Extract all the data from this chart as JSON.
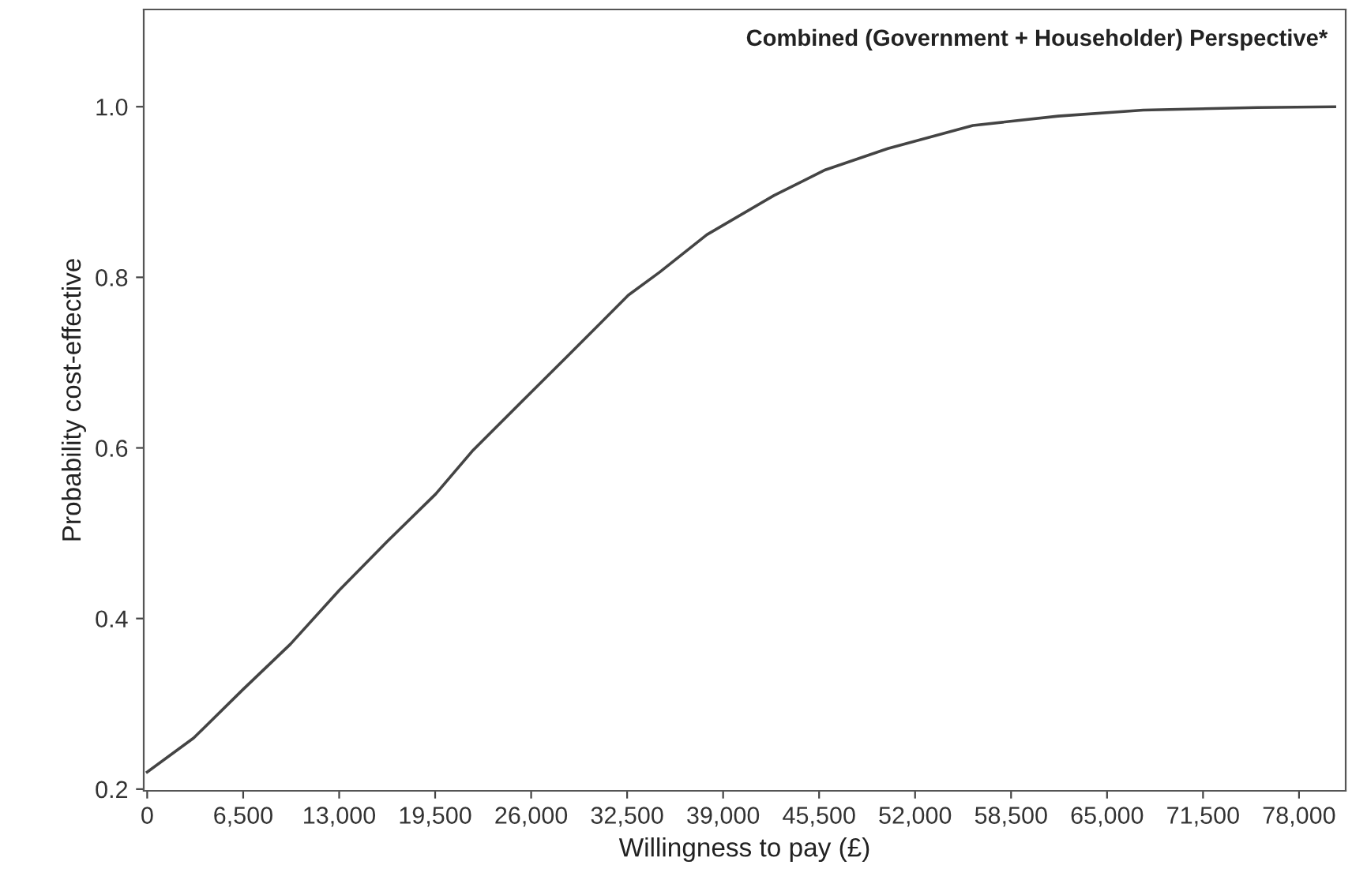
{
  "chart_data": {
    "type": "line",
    "title": "Combined (Government + Householder) Perspective*",
    "xlabel": "Willingness to pay (£)",
    "ylabel": "Probability cost-effective",
    "x": [
      0,
      3150,
      6500,
      9700,
      13000,
      16230,
      19540,
      22000,
      26040,
      28540,
      32580,
      34700,
      37900,
      42450,
      45920,
      50150,
      55910,
      61690,
      67450,
      75150,
      80420
    ],
    "series": [
      {
        "color": "#444444",
        "values": [
          0.22,
          0.26,
          0.317,
          0.37,
          0.433,
          0.49,
          0.546,
          0.596,
          0.666,
          0.709,
          0.779,
          0.806,
          0.85,
          0.896,
          0.926,
          0.951,
          0.978,
          0.989,
          0.996,
          0.999,
          1.0
        ]
      }
    ],
    "xlim": [
      -235,
      81160
    ],
    "ylim": [
      0.198,
      1.114
    ],
    "xticks": [
      {
        "value": 0,
        "label": "0"
      },
      {
        "value": 6500,
        "label": "6,500"
      },
      {
        "value": 13000,
        "label": "13,000"
      },
      {
        "value": 19500,
        "label": "19,500"
      },
      {
        "value": 26000,
        "label": "26,000"
      },
      {
        "value": 32500,
        "label": "32,500"
      },
      {
        "value": 39000,
        "label": "39,000"
      },
      {
        "value": 45500,
        "label": "45,500"
      },
      {
        "value": 52000,
        "label": "52,000"
      },
      {
        "value": 58500,
        "label": "58,500"
      },
      {
        "value": 65000,
        "label": "65,000"
      },
      {
        "value": 71500,
        "label": "71,500"
      },
      {
        "value": 78000,
        "label": "78,000"
      }
    ],
    "yticks": [
      {
        "value": 0.2,
        "label": "0.2"
      },
      {
        "value": 0.4,
        "label": "0.4"
      },
      {
        "value": 0.6,
        "label": "0.6"
      },
      {
        "value": 0.8,
        "label": "0.8"
      },
      {
        "value": 1.0,
        "label": "1.0"
      }
    ],
    "grid": false,
    "marker": "none",
    "line_style": "solid"
  }
}
